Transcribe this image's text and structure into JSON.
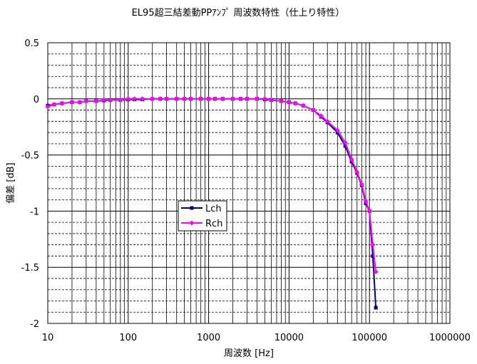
{
  "chart_data": {
    "type": "line",
    "title": "EL95超三結差動PPｱﾝﾌﾟ 周波数特性（仕上り特性）",
    "xlabel": "周波数 [Hz]",
    "ylabel": "偏差 [dB]",
    "x_scale": "log",
    "xlim": [
      10,
      1000000
    ],
    "ylim": [
      -2,
      0.5
    ],
    "x_ticks": [
      "10",
      "100",
      "1000",
      "10000",
      "100000",
      "1000000"
    ],
    "y_ticks": [
      "0.5",
      "0",
      "-0.5",
      "-1",
      "-1.5",
      "-2"
    ],
    "grid": true,
    "legend_position": "center-left",
    "series": [
      {
        "name": "Lch",
        "color": "#000080",
        "marker": "square",
        "x": [
          10,
          12,
          15,
          20,
          25,
          30,
          40,
          50,
          60,
          80,
          100,
          120,
          150,
          200,
          250,
          300,
          400,
          500,
          600,
          800,
          1000,
          1200,
          1500,
          2000,
          2500,
          3000,
          4000,
          5000,
          6000,
          8000,
          10000,
          12000,
          15000,
          20000,
          25000,
          30000,
          40000,
          50000,
          60000,
          70000,
          80000,
          90000,
          100000,
          110000,
          120000
        ],
        "y": [
          -0.06,
          -0.05,
          -0.04,
          -0.03,
          -0.03,
          -0.02,
          -0.02,
          -0.015,
          -0.01,
          -0.01,
          -0.005,
          -0.005,
          -0.005,
          0,
          0,
          0,
          0,
          0,
          0,
          0,
          0,
          0,
          0,
          0,
          0,
          0,
          0,
          -0.005,
          -0.01,
          -0.02,
          -0.03,
          -0.04,
          -0.06,
          -0.1,
          -0.16,
          -0.21,
          -0.3,
          -0.42,
          -0.56,
          -0.66,
          -0.77,
          -0.93,
          -1.0,
          -1.4,
          -1.86
        ]
      },
      {
        "name": "Rch",
        "color": "#ff00ff",
        "marker": "diamond",
        "x": [
          10,
          12,
          15,
          20,
          25,
          30,
          40,
          50,
          60,
          80,
          100,
          120,
          150,
          200,
          250,
          300,
          400,
          500,
          600,
          800,
          1000,
          1200,
          1500,
          2000,
          2500,
          3000,
          4000,
          5000,
          6000,
          8000,
          10000,
          12000,
          15000,
          20000,
          25000,
          30000,
          40000,
          50000,
          60000,
          70000,
          80000,
          90000,
          100000,
          110000,
          120000
        ],
        "y": [
          -0.07,
          -0.05,
          -0.04,
          -0.03,
          -0.03,
          -0.02,
          -0.02,
          -0.01,
          -0.01,
          -0.01,
          0,
          0,
          0,
          0,
          0,
          0,
          0,
          0,
          0,
          0,
          0,
          0,
          0,
          0,
          0,
          0,
          0,
          0,
          -0.01,
          -0.02,
          -0.03,
          -0.04,
          -0.06,
          -0.1,
          -0.15,
          -0.2,
          -0.28,
          -0.39,
          -0.54,
          -0.65,
          -0.76,
          -0.91,
          -1.0,
          -1.3,
          -1.54
        ]
      }
    ]
  }
}
